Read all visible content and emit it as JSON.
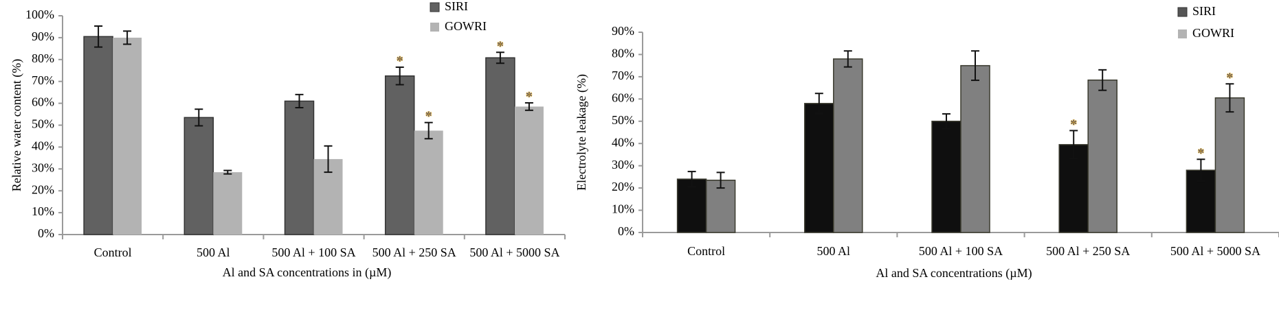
{
  "chart_data": [
    {
      "type": "bar",
      "title": "",
      "xlabel": "Al and SA concentrations in (µM)",
      "ylabel": "Relative water content (%)",
      "ylim": [
        0,
        100
      ],
      "yticks": [
        "0%",
        "10%",
        "20%",
        "30%",
        "40%",
        "50%",
        "60%",
        "70%",
        "80%",
        "90%",
        "100%"
      ],
      "categories": [
        "Control",
        "500 Al",
        "500 Al + 100 SA",
        "500 Al + 250 SA",
        "500 Al + 5000 SA"
      ],
      "legend": "top-right",
      "grid": false,
      "series": [
        {
          "name": "SIRI",
          "color": "#616161",
          "values": [
            90.5,
            53.5,
            61,
            72.5,
            80.8
          ],
          "errors": [
            4.8,
            3.8,
            3,
            4,
            2.5
          ],
          "significant": [
            false,
            false,
            false,
            true,
            true
          ]
        },
        {
          "name": "GOWRI",
          "color": "#b3b3b3",
          "values": [
            90,
            28.5,
            34.5,
            47.5,
            58.5
          ],
          "errors": [
            3,
            0.8,
            6,
            3.7,
            1.7
          ],
          "significant": [
            false,
            false,
            false,
            true,
            true
          ]
        }
      ],
      "annotation_marker": "*"
    },
    {
      "type": "bar",
      "title": "",
      "xlabel": "Al and SA concentrations (µM)",
      "ylabel": "Electrolyte leakage (%)",
      "ylim": [
        0,
        90
      ],
      "yticks": [
        "0%",
        "10%",
        "20%",
        "30%",
        "40%",
        "50%",
        "60%",
        "70%",
        "80%",
        "90%"
      ],
      "categories": [
        "Control",
        "500 Al",
        "500 Al + 100 SA",
        "500 Al + 250 SA",
        "500 Al + 5000 SA"
      ],
      "legend": "top-right",
      "grid": false,
      "series": [
        {
          "name": "SIRI",
          "color": "#0f0f0f",
          "values": [
            24,
            58,
            50,
            39.5,
            28
          ],
          "errors": [
            3.4,
            4.5,
            3.3,
            6.3,
            4.9
          ],
          "significant": [
            false,
            false,
            false,
            true,
            true
          ]
        },
        {
          "name": "GOWRI",
          "color": "#808080",
          "values": [
            23.5,
            78,
            75,
            68.5,
            60.5
          ],
          "errors": [
            3.5,
            3.6,
            6.6,
            4.6,
            6.3
          ],
          "significant": [
            false,
            false,
            false,
            false,
            true
          ]
        }
      ],
      "annotation_marker": "*"
    }
  ]
}
